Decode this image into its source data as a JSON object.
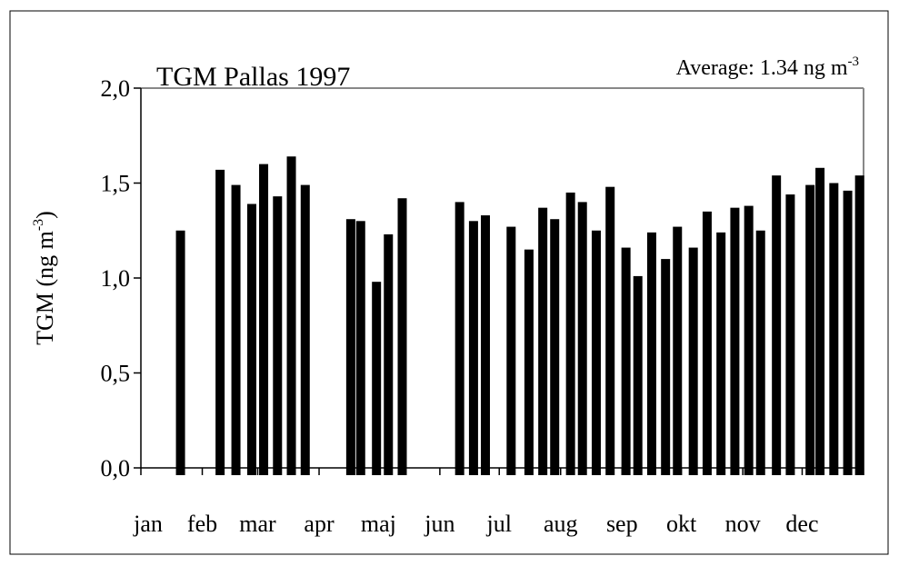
{
  "chart_data": {
    "type": "bar",
    "title": "TGM Pallas 1997",
    "annotation": [
      "Average: 1.34 ng m",
      "-3"
    ],
    "ylabel": [
      "TGM  (ng m",
      "-3",
      ")"
    ],
    "x": [
      20,
      40,
      48,
      56,
      62,
      69,
      76,
      83,
      106,
      111,
      119,
      125,
      132,
      161,
      168,
      174,
      187,
      196,
      203,
      209,
      217,
      223,
      230,
      237,
      245,
      251,
      258,
      265,
      271,
      279,
      286,
      293,
      300,
      307,
      313,
      321,
      328,
      338,
      343,
      350,
      357,
      363
    ],
    "values": [
      1.25,
      1.57,
      1.49,
      1.39,
      1.6,
      1.43,
      1.64,
      1.49,
      1.31,
      1.3,
      0.98,
      1.23,
      1.42,
      1.4,
      1.3,
      1.33,
      1.27,
      1.15,
      1.37,
      1.31,
      1.45,
      1.4,
      1.25,
      1.48,
      1.16,
      1.01,
      1.24,
      1.1,
      1.27,
      1.16,
      1.35,
      1.24,
      1.37,
      1.38,
      1.25,
      1.54,
      1.44,
      1.49,
      1.58,
      1.5,
      1.46,
      1.54
    ],
    "color": "#000000",
    "xlim": [
      0,
      365
    ],
    "xticks": [
      {
        "value": 0,
        "label": "jan"
      },
      {
        "value": 31,
        "label": "feb"
      },
      {
        "value": 59,
        "label": "mar"
      },
      {
        "value": 90,
        "label": "apr"
      },
      {
        "value": 120,
        "label": "maj"
      },
      {
        "value": 151,
        "label": "jun"
      },
      {
        "value": 181,
        "label": "jul"
      },
      {
        "value": 212,
        "label": "aug"
      },
      {
        "value": 243,
        "label": "sep"
      },
      {
        "value": 273,
        "label": "okt"
      },
      {
        "value": 304,
        "label": "nov"
      },
      {
        "value": 334,
        "label": "dec"
      }
    ],
    "ylim": [
      0,
      2
    ],
    "yticks": [
      {
        "value": 0,
        "label": "0,0"
      },
      {
        "value": 0.5,
        "label": "0,5"
      },
      {
        "value": 1,
        "label": "1,0"
      },
      {
        "value": 1.5,
        "label": "1,5"
      },
      {
        "value": 2,
        "label": "2,0"
      }
    ]
  }
}
